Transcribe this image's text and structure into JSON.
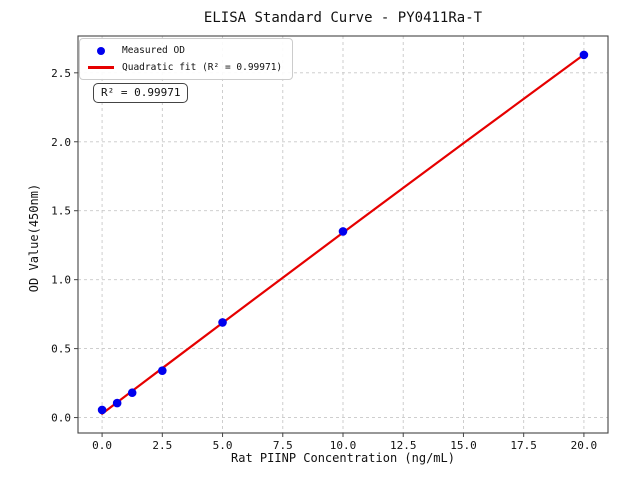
{
  "annotation": {
    "text": "R² = 0.99971"
  },
  "colors": {
    "marker": "#0000ee",
    "fit_line": "#e60000",
    "grid": "#c8c8c8",
    "spine": "#444444",
    "text": "#111111",
    "legend_border": "#cccccc",
    "background": "#ffffff"
  },
  "chart_data": {
    "type": "scatter",
    "title": "ELISA Standard Curve - PY0411Ra-T",
    "xlabel": "Rat PIINP Concentration (ng/mL)",
    "ylabel": "OD Value(450nm)",
    "x_tick_values": [
      0,
      2.5,
      5,
      7.5,
      10,
      12.5,
      15,
      17.5,
      20
    ],
    "x_tick_labels": [
      "0.0",
      "2.5",
      "5.0",
      "7.5",
      "10.0",
      "12.5",
      "15.0",
      "17.5",
      "20.0"
    ],
    "y_tick_values": [
      0,
      0.5,
      1,
      1.5,
      2,
      2.5
    ],
    "y_tick_labels": [
      "0.0",
      "0.5",
      "1.0",
      "1.5",
      "2.0",
      "2.5"
    ],
    "xlim": [
      -1.0,
      21.0
    ],
    "ylim": [
      -0.112,
      2.767
    ],
    "grid": true,
    "grid_style": "dashed",
    "legend_position": "upper left",
    "series": [
      {
        "name": "Measured OD",
        "type": "scatter",
        "color": "#0000ee",
        "x": [
          0,
          0.625,
          1.25,
          2.5,
          5,
          10,
          20
        ],
        "y": [
          0.055,
          0.105,
          0.18,
          0.34,
          0.69,
          1.35,
          2.63
        ]
      },
      {
        "name": "Quadratic fit (R² = 0.99971)",
        "type": "line",
        "color": "#e60000",
        "r_squared": 0.99971,
        "x": [
          0,
          2.5,
          5,
          7.5,
          10,
          12.5,
          15,
          17.5,
          20
        ],
        "y": [
          0.028,
          0.358,
          0.687,
          1.014,
          1.341,
          1.666,
          1.989,
          2.311,
          2.632
        ]
      }
    ]
  }
}
